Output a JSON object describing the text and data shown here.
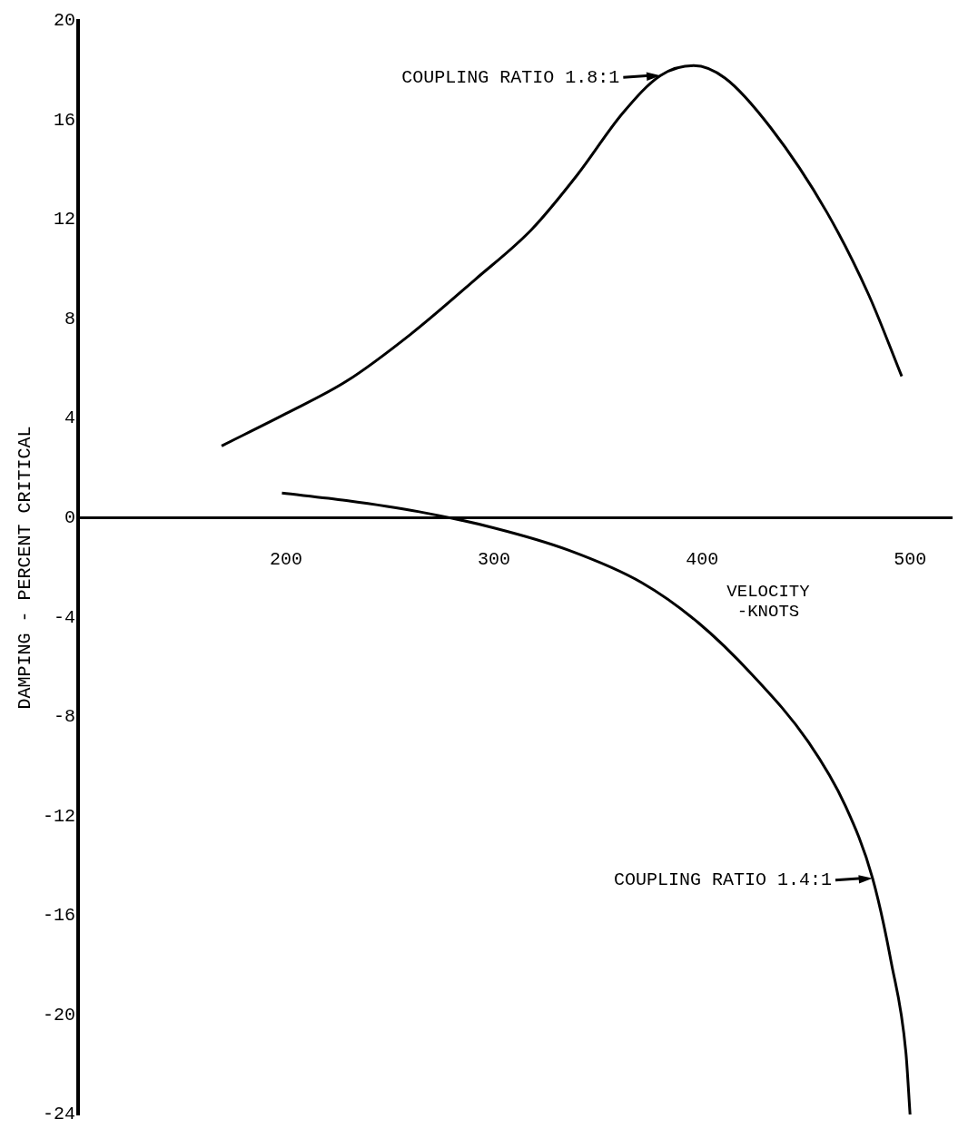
{
  "chart_data": {
    "type": "line",
    "xlabel": "VELOCITY -KNOTS",
    "ylabel": "DAMPING - PERCENT CRITICAL",
    "xlim": [
      100,
      520
    ],
    "xticks": [
      200,
      300,
      400,
      500
    ],
    "ylim": [
      -24,
      20
    ],
    "yticks": [
      20,
      16,
      12,
      8,
      4,
      0,
      -4,
      -8,
      -12,
      -16,
      -20,
      -24
    ],
    "grid": false,
    "legend": "right",
    "marker": "none",
    "line_style": "solid",
    "series": [
      {
        "name": "COUPLING RATIO 1.8:1",
        "color": "#000000",
        "x": [
          169,
          200,
          229,
          260,
          291,
          318,
          340,
          362,
          380,
          396,
          411,
          433,
          460,
          480,
          496
        ],
        "values": [
          2.9,
          4.2,
          5.5,
          7.4,
          9.6,
          11.6,
          13.8,
          16.3,
          17.8,
          18.2,
          17.7,
          15.7,
          12.3,
          9.0,
          5.7
        ]
      },
      {
        "name": "COUPLING RATIO 1.4:1",
        "color": "#000000",
        "x": [
          198,
          229,
          264,
          300,
          336,
          371,
          398,
          424,
          451,
          469,
          482,
          491,
          498,
          500
        ],
        "values": [
          1.0,
          0.7,
          0.25,
          -0.4,
          -1.3,
          -2.6,
          -4.2,
          -6.3,
          -9.0,
          -11.6,
          -14.5,
          -17.9,
          -21.5,
          -24
        ]
      }
    ]
  }
}
